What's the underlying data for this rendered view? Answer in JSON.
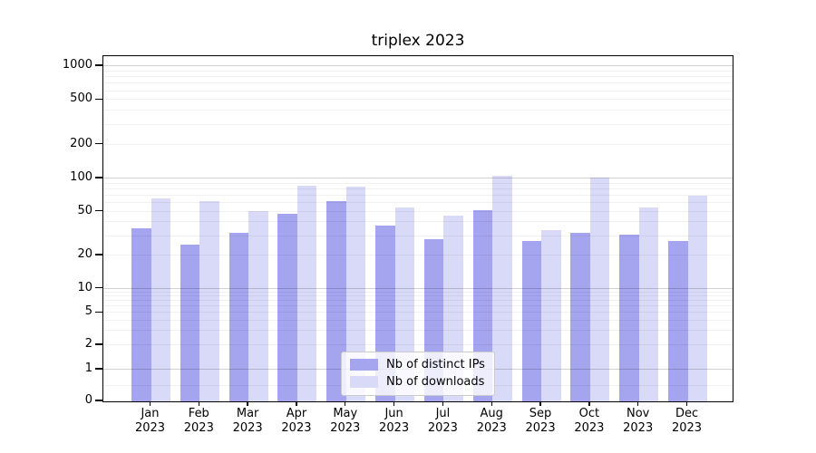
{
  "chart_data": {
    "type": "bar",
    "title": "triplex 2023",
    "x_months": [
      "Jan",
      "Feb",
      "Mar",
      "Apr",
      "May",
      "Jun",
      "Jul",
      "Aug",
      "Sep",
      "Oct",
      "Nov",
      "Dec"
    ],
    "x_year": "2023",
    "series": [
      {
        "name": "Nb of distinct IPs",
        "color": "#a4a4ef",
        "values": [
          35,
          25,
          32,
          48,
          62,
          37,
          28,
          52,
          27,
          32,
          31,
          27
        ]
      },
      {
        "name": "Nb of downloads",
        "color": "#d9d9f8",
        "values": [
          66,
          62,
          51,
          86,
          84,
          55,
          46,
          105,
          34,
          101,
          55,
          70
        ]
      }
    ],
    "y_axis": {
      "scale": "log-with-zero-baseline",
      "tick_labels": [
        "1000",
        "500",
        "200",
        "100",
        "50",
        "20",
        "10",
        "5",
        "2",
        "1",
        "0"
      ],
      "ylim": [
        0,
        1300
      ]
    },
    "grid": "on",
    "legend": {
      "position": "bottom-center"
    },
    "colors": {
      "major_grid": "#cfcfcf",
      "minor_grid": "#ededed",
      "axis": "#000000"
    }
  }
}
